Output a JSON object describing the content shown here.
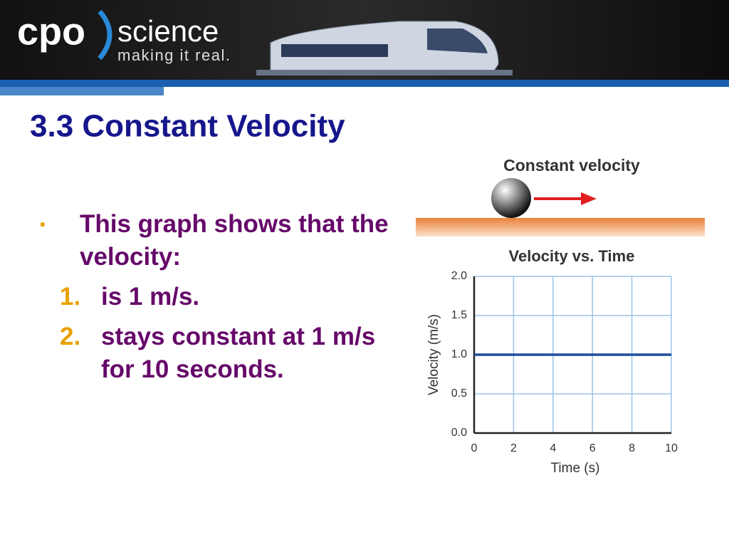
{
  "header": {
    "logo": "cpo",
    "brand": "science",
    "tagline": "making it real."
  },
  "title": "3.3 Constant Velocity",
  "bullets": {
    "text": "This graph shows that the velocity:",
    "items": [
      {
        "marker": "1.",
        "text": "is 1 m/s."
      },
      {
        "marker": "2.",
        "text": "stays constant at 1 m/s for 10 seconds."
      }
    ]
  },
  "illustration": {
    "label": "Constant velocity"
  },
  "chart_data": {
    "type": "line",
    "title": "Velocity vs. Time",
    "x_label": "Time (s)",
    "y_label": "Velocity (m/s)",
    "x": [
      0,
      10
    ],
    "values": [
      1,
      1
    ],
    "color": "#1f4e9a",
    "xlim": [
      0,
      10
    ],
    "xticks": [
      0,
      2,
      4,
      6,
      8,
      10
    ],
    "ylim": [
      0,
      2
    ],
    "yticks": [
      {
        "value": 0,
        "label": "0.0"
      },
      0.5,
      {
        "value": 1,
        "label": "1.0"
      },
      1.5,
      {
        "value": 2,
        "label": "2.0"
      }
    ],
    "grid": true
  }
}
